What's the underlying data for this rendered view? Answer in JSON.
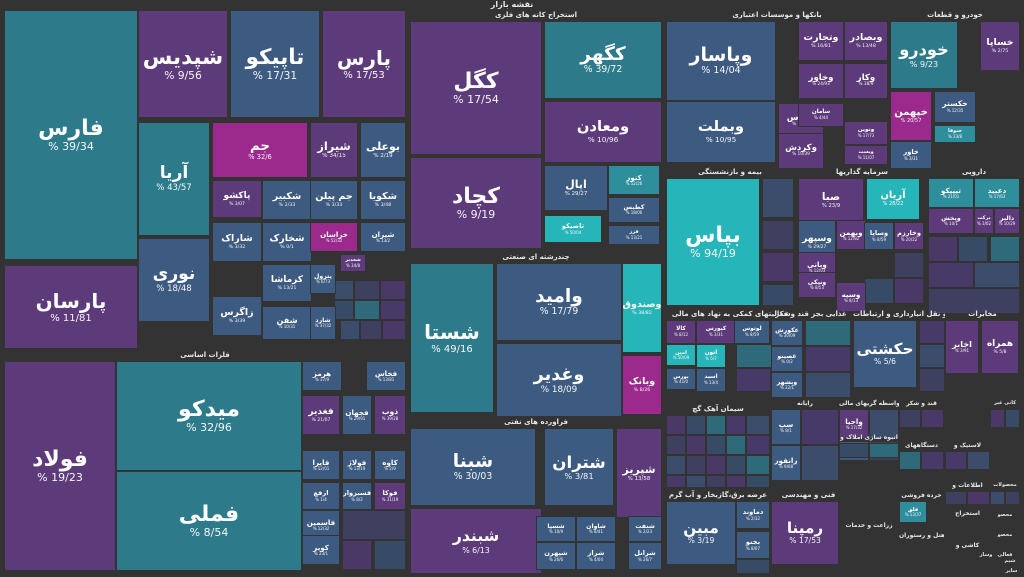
{
  "title": "نقشه بازار",
  "colors": {
    "background": "#333333",
    "teal_dark": "#2c7a8a",
    "teal": "#2f8e9c",
    "teal_light": "#26b5b8",
    "cyan": "#1fc4c4",
    "slate": "#3d5a80",
    "purple": "#5d3a7a",
    "purple_dark": "#4b3570",
    "magenta": "#9b2a8c",
    "grey": "#4a4a5a"
  },
  "chart_data": {
    "type": "treemap",
    "title": "نقشه بازار",
    "sectors": [
      {
        "name": "شیمیایی",
        "tiles": [
          {
            "name": "فارس",
            "value": "39/34",
            "color": "teal_dark"
          },
          {
            "name": "شپدیس",
            "value": "9/56",
            "color": "purple"
          },
          {
            "name": "تاپیکو",
            "value": "17/31",
            "color": "slate"
          },
          {
            "name": "پارس",
            "value": "17/53",
            "color": "purple"
          },
          {
            "name": "آریا",
            "value": "43/57",
            "color": "teal_dark"
          },
          {
            "name": "جم",
            "value": "32/6",
            "color": "magenta"
          },
          {
            "name": "شیراز",
            "value": "34/15",
            "color": "purple"
          },
          {
            "name": "بوعلی",
            "value": "2/19",
            "color": "slate"
          },
          {
            "name": "پارسان",
            "value": "11/81",
            "color": "purple"
          },
          {
            "name": "نوری",
            "value": "18/48",
            "color": "slate"
          },
          {
            "name": "پاکشو",
            "value": "3/07",
            "color": "purple"
          },
          {
            "name": "شکبیر",
            "value": "2/33",
            "color": "slate"
          },
          {
            "name": "جم پیلن",
            "value": "3/33",
            "color": "slate"
          },
          {
            "name": "شکویا",
            "value": "3/48",
            "color": "slate"
          },
          {
            "name": "شاراک",
            "value": "3/32",
            "color": "slate"
          },
          {
            "name": "شخارک",
            "value": "0/1",
            "color": "slate"
          },
          {
            "name": "خراسان",
            "value": "52/32",
            "color": "magenta"
          },
          {
            "name": "شیران",
            "value": "13/2",
            "color": "slate"
          },
          {
            "name": "کرماشا",
            "value": "13/21",
            "color": "slate"
          },
          {
            "name": "پترول",
            "value": "6/73",
            "color": "slate"
          },
          {
            "name": "شغدیر",
            "value": "34/8",
            "color": "purple"
          },
          {
            "name": "زاگرس",
            "value": "3/39",
            "color": "slate"
          },
          {
            "name": "شفن",
            "value": "10/31",
            "color": "slate"
          },
          {
            "name": "شارد",
            "value": "37/32",
            "color": "slate"
          }
        ]
      },
      {
        "name": "فلزات اساسی",
        "tiles": [
          {
            "name": "فولاد",
            "value": "19/23",
            "color": "purple"
          },
          {
            "name": "میدکو",
            "value": "32/96",
            "color": "teal_dark"
          },
          {
            "name": "فملی",
            "value": "8/54",
            "color": "teal_dark"
          },
          {
            "name": "هرمز",
            "value": "37/9",
            "color": "slate"
          },
          {
            "name": "فخاس",
            "value": "13/81",
            "color": "slate"
          },
          {
            "name": "فغدیر",
            "value": "21/07",
            "color": "purple"
          },
          {
            "name": "فجهان",
            "value": "29/91",
            "color": "slate"
          },
          {
            "name": "ذوب",
            "value": "39/28",
            "color": "purple"
          },
          {
            "name": "فایرا",
            "value": "12/01",
            "color": "slate"
          },
          {
            "name": "فولاژ",
            "value": "13/19",
            "color": "slate"
          },
          {
            "name": "کاوه",
            "value": "2/9",
            "color": "slate"
          },
          {
            "name": "ارفع",
            "value": "1/4",
            "color": "slate"
          },
          {
            "name": "فسبزوار",
            "value": "8/2",
            "color": "slate"
          },
          {
            "name": "فوکا",
            "value": "31/19",
            "color": "purple"
          },
          {
            "name": "فاسمین",
            "value": "12/32",
            "color": "slate"
          },
          {
            "name": "کویر",
            "value": "23/1",
            "color": "slate"
          }
        ]
      },
      {
        "name": "استخراج کانه های فلزی",
        "tiles": [
          {
            "name": "کگل",
            "value": "17/54",
            "color": "purple"
          },
          {
            "name": "کگهر",
            "value": "39/72",
            "color": "teal_dark"
          },
          {
            "name": "ومعادن",
            "value": "10/96",
            "color": "purple"
          },
          {
            "name": "کچاد",
            "value": "9/19",
            "color": "purple"
          },
          {
            "name": "کنور",
            "value": "52/26",
            "color": "teal"
          },
          {
            "name": "اپال",
            "value": "29/27",
            "color": "slate"
          },
          {
            "name": "تاصیکو",
            "value": "50/04",
            "color": "teal_light"
          },
          {
            "name": "کطبس",
            "value": "18/06",
            "color": "slate"
          },
          {
            "name": "فرز",
            "value": "13/21",
            "color": "slate"
          }
        ]
      },
      {
        "name": "بانکها و موسسات اعتباری",
        "tiles": [
          {
            "name": "وپاسار",
            "value": "14/04",
            "color": "slate"
          },
          {
            "name": "وبملت",
            "value": "10/95",
            "color": "slate"
          },
          {
            "name": "وتجارت",
            "value": "16/81",
            "color": "purple"
          },
          {
            "name": "وبصادر",
            "value": "13/48",
            "color": "purple"
          },
          {
            "name": "وخاور",
            "value": "24/93",
            "color": "purple"
          },
          {
            "name": "وکار",
            "value": "38/9",
            "color": "purple"
          },
          {
            "name": "وپارس",
            "value": "12/09",
            "color": "purple"
          },
          {
            "name": "سامان",
            "value": "4/44",
            "color": "purple"
          },
          {
            "name": "وکردش",
            "value": "10/39",
            "color": "purple"
          },
          {
            "name": "ونوین",
            "value": "17/73",
            "color": "purple"
          },
          {
            "name": "وبست",
            "value": "11/07",
            "color": "purple"
          }
        ]
      },
      {
        "name": "خودرو و قطعات",
        "tiles": [
          {
            "name": "خودرو",
            "value": "9/23",
            "color": "teal_dark"
          },
          {
            "name": "خساپا",
            "value": "2/75",
            "color": "purple"
          },
          {
            "name": "خپهمن",
            "value": "20/57",
            "color": "magenta"
          },
          {
            "name": "خکستر",
            "value": "12/35",
            "color": "slate"
          },
          {
            "name": "ختوقا",
            "value": "23/8",
            "color": "teal"
          },
          {
            "name": "خاور",
            "value": "3/31",
            "color": "slate"
          }
        ]
      },
      {
        "name": "چندرشته ای صنعتی",
        "tiles": [
          {
            "name": "شستا",
            "value": "49/16",
            "color": "teal_dark"
          },
          {
            "name": "وامید",
            "value": "17/79",
            "color": "slate"
          },
          {
            "name": "وغدیر",
            "value": "18/09",
            "color": "slate"
          },
          {
            "name": "وصندوق",
            "value": "38/82",
            "color": "teal_light"
          },
          {
            "name": "وبانک",
            "value": "8/26",
            "color": "magenta"
          }
        ]
      },
      {
        "name": "بیمه و بازنشستگی",
        "tiles": [
          {
            "name": "بپاس",
            "value": "94/19",
            "color": "teal_light"
          }
        ]
      },
      {
        "name": "سرمایه گذاریها",
        "tiles": [
          {
            "name": "صبا",
            "value": "23/9",
            "color": "purple"
          },
          {
            "name": "وسپهر",
            "value": "29/27",
            "color": "slate"
          },
          {
            "name": "وبهمن",
            "value": "12/82",
            "color": "purple"
          },
          {
            "name": "وبانی",
            "value": "12/03",
            "color": "purple"
          },
          {
            "name": "ونیکی",
            "value": "8/53",
            "color": "purple"
          },
          {
            "name": "وسپه",
            "value": "8/13",
            "color": "purple"
          },
          {
            "name": "آریان",
            "value": "28/22",
            "color": "teal_light"
          },
          {
            "name": "وساپا",
            "value": "8/59",
            "color": "slate"
          },
          {
            "name": "وخارزم",
            "value": "20/22",
            "color": "purple"
          }
        ]
      },
      {
        "name": "دارویی",
        "tiles": [
          {
            "name": "تیپیکو",
            "value": "21/01",
            "color": "teal"
          },
          {
            "name": "دعبید",
            "value": "17/63",
            "color": "teal"
          },
          {
            "name": "ویخش",
            "value": "10/1",
            "color": "purple"
          },
          {
            "name": "برکت",
            "value": "3/02",
            "color": "purple"
          },
          {
            "name": "دالبر",
            "value": "10/29",
            "color": "purple"
          }
        ]
      },
      {
        "name": "فعالیتهای کمکی به نهاد های مالی",
        "tiles": [
          {
            "name": "کالا",
            "value": "8/12",
            "color": "purple"
          },
          {
            "name": "کبورس",
            "value": "3/31",
            "color": "purple"
          },
          {
            "name": "امین",
            "value": "50/09",
            "color": "teal_light"
          },
          {
            "name": "اتون",
            "value": "5/7",
            "color": "teal_light"
          },
          {
            "name": "بورس",
            "value": "41/0",
            "color": "slate"
          },
          {
            "name": "اسید",
            "value": "13/4",
            "color": "slate"
          },
          {
            "name": "لوتوس",
            "value": "8/59",
            "color": "slate"
          }
        ]
      },
      {
        "name": "غذایی بجز قند وشکر",
        "tiles": [
          {
            "name": "عکورش",
            "value": "30/09",
            "color": "slate"
          },
          {
            "name": "غصینو",
            "value": "0/2",
            "color": "slate"
          },
          {
            "name": "وبشهر",
            "value": "22/1",
            "color": "slate"
          }
        ]
      },
      {
        "name": "حمل و نقل انبارداری و ارتباطات",
        "tiles": [
          {
            "name": "حکشتی",
            "value": "5/6",
            "color": "slate"
          }
        ]
      },
      {
        "name": "مخابرات",
        "tiles": [
          {
            "name": "اخابر",
            "value": "3/91",
            "color": "purple"
          },
          {
            "name": "همراه",
            "value": "5/8",
            "color": "purple"
          }
        ]
      },
      {
        "name": "فراورده های نفتی",
        "tiles": [
          {
            "name": "شبنا",
            "value": "30/03",
            "color": "slate"
          },
          {
            "name": "شتران",
            "value": "3/81",
            "color": "slate"
          },
          {
            "name": "شپریز",
            "value": "13/58",
            "color": "purple"
          },
          {
            "name": "شبندر",
            "value": "6/13",
            "color": "purple"
          },
          {
            "name": "شسپا",
            "value": "10/9",
            "color": "slate"
          },
          {
            "name": "شاوان",
            "value": "8/41",
            "color": "slate"
          },
          {
            "name": "شنفت",
            "value": "2/23",
            "color": "slate"
          },
          {
            "name": "شپهرن",
            "value": "26/6",
            "color": "slate"
          },
          {
            "name": "شراز",
            "value": "4/04",
            "color": "slate"
          },
          {
            "name": "شرانل",
            "value": "26/7",
            "color": "slate"
          }
        ]
      },
      {
        "name": "سیمان آهک گچ",
        "tiles": []
      },
      {
        "name": "عرضه برق،گازبخار و آب گرم",
        "tiles": [
          {
            "name": "مبین",
            "value": "3/19",
            "color": "slate"
          },
          {
            "name": "دماوند",
            "value": "2/32",
            "color": "slate"
          },
          {
            "name": "بجنو",
            "value": "8/07",
            "color": "slate"
          }
        ]
      },
      {
        "name": "فنی و مهندسی",
        "tiles": [
          {
            "name": "رمپنا",
            "value": "17/53",
            "color": "purple"
          }
        ]
      },
      {
        "name": "رایانه",
        "tiles": [
          {
            "name": "سپ",
            "value": "8/1",
            "color": "slate"
          },
          {
            "name": "رانفور",
            "value": "9/08",
            "color": "slate"
          }
        ]
      },
      {
        "name": "ماشین آلات و واسطه گریهای مالی",
        "tiles": [
          {
            "name": "واحیا",
            "value": "17/32",
            "color": "purple"
          },
          {
            "name": "وسالت",
            "value": "6/9",
            "color": "slate"
          }
        ]
      },
      {
        "name": "قند و شکر",
        "tiles": []
      },
      {
        "name": "کانی غیر",
        "tiles": []
      },
      {
        "name": "انبوه سازی املاک و",
        "tiles": []
      },
      {
        "name": "دستگاههای",
        "tiles": []
      },
      {
        "name": "لاستیک و",
        "tiles": []
      },
      {
        "name": "محصولات",
        "tiles": []
      },
      {
        "name": "اطلاعات و",
        "tiles": []
      },
      {
        "name": "زراعت و خدمات",
        "tiles": []
      },
      {
        "name": "خرده فروشی",
        "tiles": [
          {
            "name": "فلق",
            "value": "13/37",
            "color": "teal"
          }
        ]
      },
      {
        "name": "استخراج",
        "tiles": []
      },
      {
        "name": "هتل و رستوران",
        "tiles": []
      },
      {
        "name": "کاشی و",
        "tiles": []
      },
      {
        "name": "محصو",
        "tiles": []
      },
      {
        "name": "محصو",
        "tiles": []
      },
      {
        "name": "فعالی",
        "tiles": []
      },
      {
        "name": "وساز",
        "tiles": []
      },
      {
        "name": "شیم",
        "tiles": []
      },
      {
        "name": "سایر",
        "tiles": []
      },
      {
        "name": "ماش",
        "tiles": []
      }
    ]
  }
}
